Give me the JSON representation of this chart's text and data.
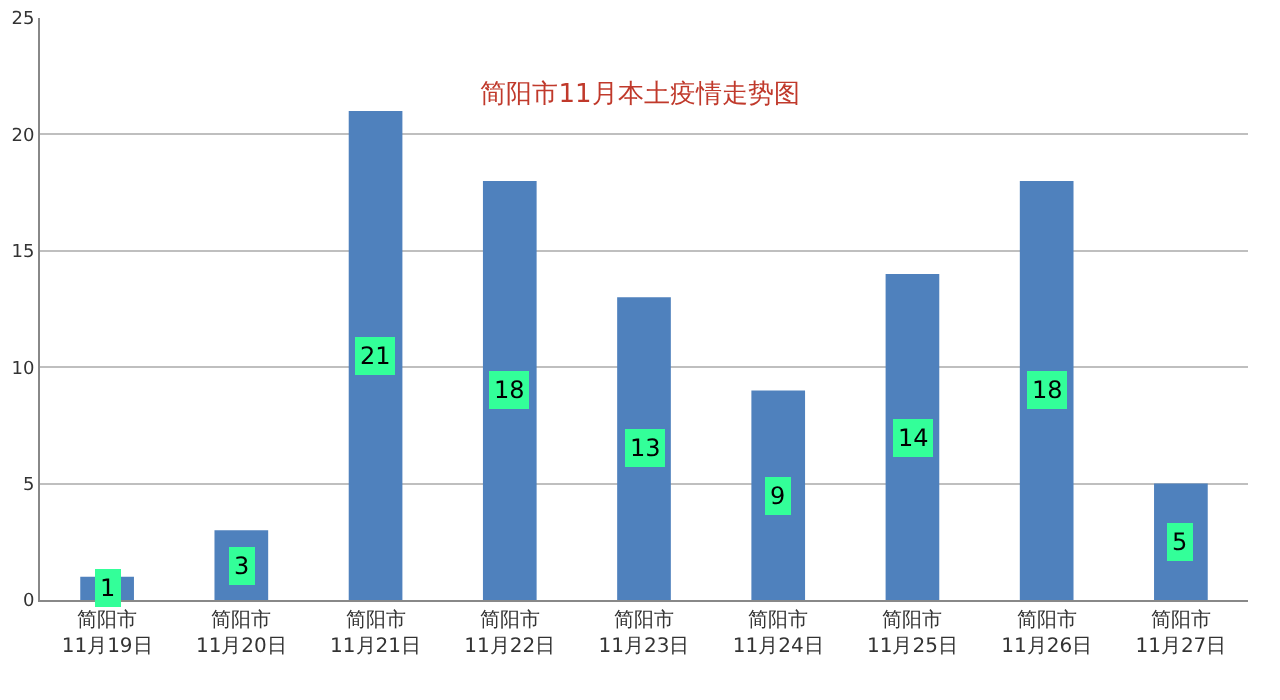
{
  "chart_data": {
    "type": "bar",
    "title": "简阳市11月本土疫情走势图",
    "categories": [
      "简阳市\n11月19日",
      "简阳市\n11月20日",
      "简阳市\n11月21日",
      "简阳市\n11月22日",
      "简阳市\n11月23日",
      "简阳市\n11月24日",
      "简阳市\n11月25日",
      "简阳市\n11月26日",
      "简阳市\n11月27日"
    ],
    "values": [
      1,
      3,
      21,
      18,
      13,
      9,
      14,
      18,
      5
    ],
    "color": "#4f81bd",
    "ylim": [
      0,
      25
    ],
    "yticks": [
      0,
      5,
      10,
      15,
      20,
      25
    ],
    "grid": "y",
    "data_labels": true
  }
}
